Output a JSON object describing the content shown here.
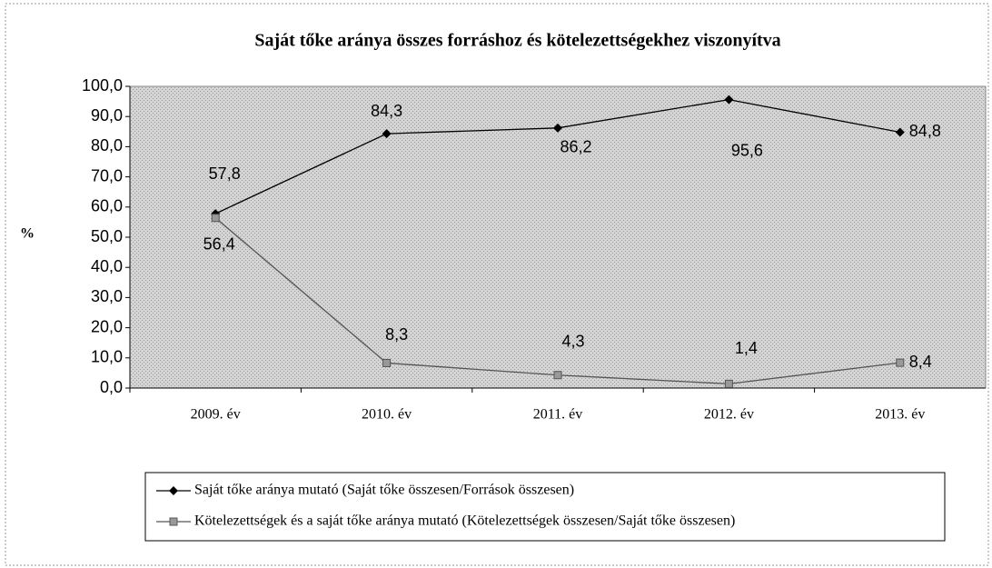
{
  "chart_data": {
    "type": "line",
    "title": "Saját tőke aránya összes forráshoz és kötelezettségekhez viszonyítva",
    "y_label": "%",
    "categories": [
      "2009. év",
      "2010. év",
      "2011. év",
      "2012. év",
      "2013. év"
    ],
    "series": [
      {
        "name": "Saját tőke aránya mutató (Saját tőke összesen/Források összesen)",
        "color": "#000000",
        "marker": "diamond",
        "values": [
          57.8,
          84.3,
          86.2,
          95.6,
          84.8
        ],
        "value_labels": [
          "57,8",
          "84,3",
          "86,2",
          "95,6",
          "84,8"
        ]
      },
      {
        "name": "Kötelezettségek és a saját tőke aránya mutató (Kötelezettségek összesen/Saját tőke összesen)",
        "color": "#555555",
        "marker": "square",
        "values": [
          56.4,
          8.3,
          4.3,
          1.4,
          8.4
        ],
        "value_labels": [
          "56,4",
          "8,3",
          "4,3",
          "1,4",
          "8,4"
        ]
      }
    ],
    "ylim": [
      0,
      100
    ],
    "yticks": [
      {
        "value": 0,
        "label": "0,0"
      },
      {
        "value": 10,
        "label": "10,0"
      },
      {
        "value": 20,
        "label": "20,0"
      },
      {
        "value": 30,
        "label": "30,0"
      },
      {
        "value": 40,
        "label": "40,0"
      },
      {
        "value": 50,
        "label": "50,0"
      },
      {
        "value": 60,
        "label": "60,0"
      },
      {
        "value": 70,
        "label": "70,0"
      },
      {
        "value": 80,
        "label": "80,0"
      },
      {
        "value": 90,
        "label": "90,0"
      },
      {
        "value": 100,
        "label": "100,0"
      }
    ],
    "legend": "bottom"
  }
}
